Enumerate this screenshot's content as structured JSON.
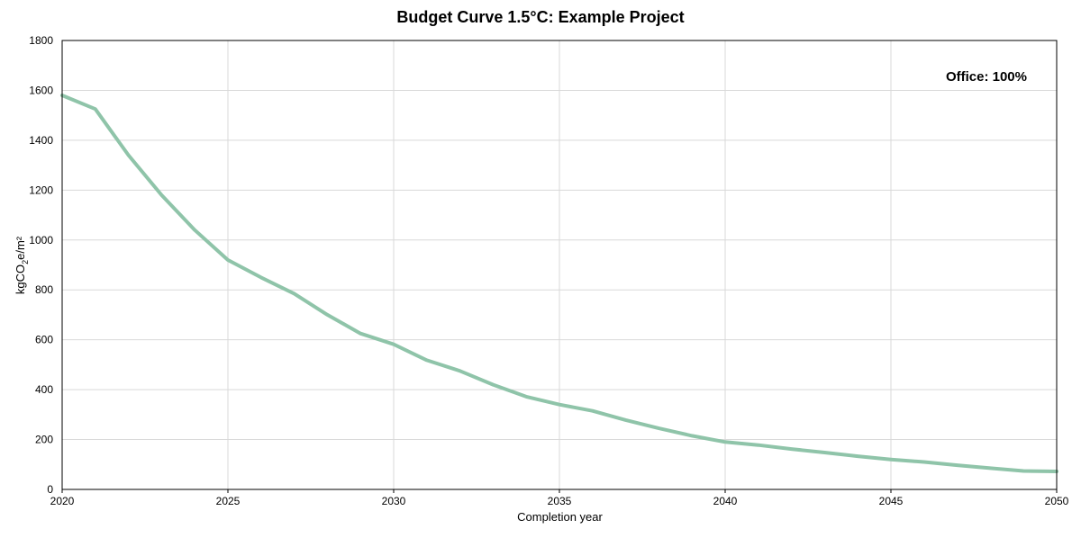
{
  "chart_data": {
    "type": "line",
    "title": "Budget Curve 1.5°C: Example Project",
    "xlabel": "Completion year",
    "ylabel_parts": {
      "pre": "kgCO",
      "sub": "2",
      "post": "e/m²"
    },
    "annotation": "Office: 100%",
    "xlim": [
      2020,
      2050
    ],
    "ylim": [
      0,
      1800
    ],
    "x_ticks": [
      2020,
      2025,
      2030,
      2035,
      2040,
      2045,
      2050
    ],
    "y_ticks": [
      0,
      200,
      400,
      600,
      800,
      1000,
      1200,
      1400,
      1600,
      1800
    ],
    "grid": true,
    "series": [
      {
        "name": "Office",
        "color": "#8fc4a9",
        "x": [
          2020,
          2021,
          2022,
          2023,
          2024,
          2025,
          2026,
          2027,
          2028,
          2029,
          2030,
          2031,
          2032,
          2033,
          2034,
          2035,
          2036,
          2037,
          2038,
          2039,
          2040,
          2041,
          2042,
          2043,
          2044,
          2045,
          2046,
          2047,
          2048,
          2049,
          2050
        ],
        "values": [
          1580,
          1525,
          1340,
          1180,
          1040,
          920,
          850,
          785,
          700,
          625,
          582,
          518,
          475,
          420,
          372,
          340,
          315,
          278,
          245,
          215,
          190,
          178,
          162,
          148,
          133,
          120,
          110,
          97,
          85,
          74,
          72
        ]
      }
    ]
  }
}
